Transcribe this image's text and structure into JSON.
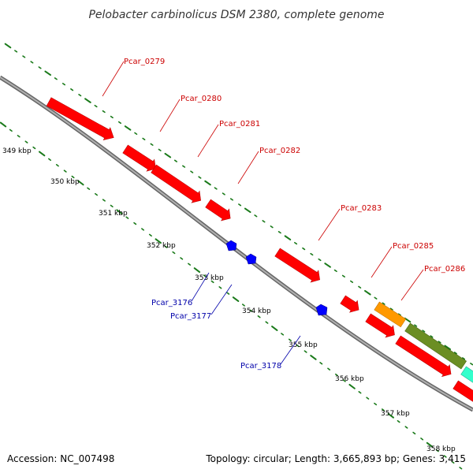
{
  "title": "Pelobacter carbinolicus DSM 2380, complete genome",
  "footer": {
    "accession": "Accession: NC_007498",
    "summary": "Topology: circular; Length: 3,665,893 bp; Genes: 3,415"
  },
  "colors": {
    "forward_gene": "#ff0000",
    "reverse_gene": "#0000ff",
    "forward_label": "#cc0000",
    "reverse_label": "#0000aa",
    "backbone": "#888888",
    "tick_dots": "#1a7a1a",
    "orange_gene": "#ff9900",
    "olive_gene": "#6b8e23",
    "teal_gene": "#33ffcc"
  },
  "ticks": [
    {
      "label": "349 kbp"
    },
    {
      "label": "350 kbp"
    },
    {
      "label": "351 kbp"
    },
    {
      "label": "352 kbp"
    },
    {
      "label": "353 kbp"
    },
    {
      "label": "354 kbp"
    },
    {
      "label": "355 kbp"
    },
    {
      "label": "356 kbp"
    },
    {
      "label": "357 kbp"
    },
    {
      "label": "358 kbp"
    }
  ],
  "forward_genes": [
    {
      "label": "Pcar_0279"
    },
    {
      "label": "Pcar_0280"
    },
    {
      "label": "Pcar_0281"
    },
    {
      "label": "Pcar_0282"
    },
    {
      "label": "Pcar_0283"
    },
    {
      "label": "Pcar_0285"
    },
    {
      "label": "Pcar_0286"
    }
  ],
  "reverse_genes": [
    {
      "label": "Pcar_3176"
    },
    {
      "label": "Pcar_3177"
    },
    {
      "label": "Pcar_3178"
    }
  ]
}
